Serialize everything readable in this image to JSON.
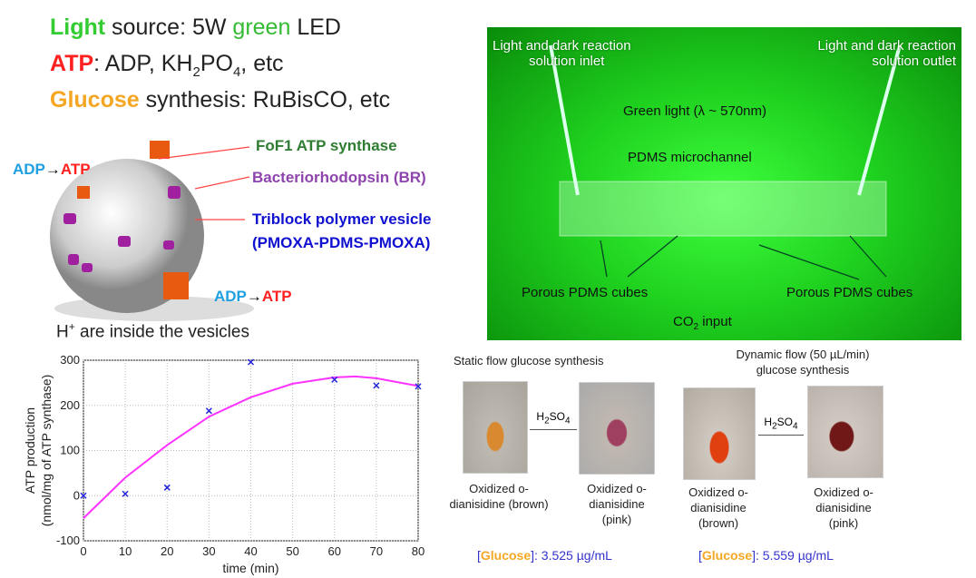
{
  "header": {
    "line1": {
      "key": "Light",
      "rest1": " source: 5W ",
      "green": "green",
      "rest2": " LED"
    },
    "line2": {
      "key": "ATP",
      "rest": ": ADP, KH",
      "sub1": "2",
      "mid": "PO",
      "sub2": "4",
      "end": ", etc"
    },
    "line3": {
      "key": "Glucose",
      "rest": " synthesis: RuBisCO, etc"
    }
  },
  "vesicle": {
    "fof1": "FoF1 ATP synthase",
    "br": "Bacteriorhodopsin (BR)",
    "polymer1": "Triblock polymer vesicle",
    "polymer2": "(PMOXA-PDMS-PMOXA)",
    "adp": "ADP",
    "arrow": "→",
    "atp": "ATP",
    "h_note": "H",
    "h_sup": "+",
    "h_rest": " are inside the vesicles"
  },
  "photo": {
    "inlet1": "Light and dark reaction",
    "inlet2": "solution inlet",
    "outlet1": "Light and dark reaction",
    "outlet2": "solution outlet",
    "green_light": "Green light (λ ~ 570nm)",
    "channel": "PDMS microchannel",
    "cubes_left": "Porous PDMS cubes",
    "cubes_right": "Porous PDMS cubes",
    "co2": "CO",
    "co2_sub": "2",
    "co2_rest": " input"
  },
  "colors": {
    "light": "#33cc33",
    "atp": "#ff2020",
    "glucose": "#f5a623",
    "adp": "#1fa0e0",
    "fof1": "#2e7d32",
    "br": "#8e44ad",
    "polymer": "#1010d0",
    "fit": "#ff33ff",
    "points": "#2222dd",
    "conc": "#3333cc"
  },
  "chart_data": {
    "type": "scatter",
    "xlabel": "time (min)",
    "ylabel1": "ATP production",
    "ylabel2": "(nmol/mg of ATP synthase)",
    "xlim": [
      0,
      80
    ],
    "ylim": [
      -100,
      300
    ],
    "xticks": [
      "0",
      "10",
      "20",
      "30",
      "40",
      "50",
      "60",
      "70",
      "80"
    ],
    "yticks": [
      "-100",
      "0",
      "100",
      "200",
      "300"
    ],
    "grid": true,
    "series": [
      {
        "marker": "x",
        "x": [
          0,
          10,
          20,
          30,
          40,
          60,
          70,
          80
        ],
        "y": [
          0,
          4,
          18,
          188,
          296,
          257,
          244,
          242
        ]
      },
      {
        "marker": "line",
        "x": [
          0,
          10,
          20,
          30,
          40,
          50,
          60,
          65,
          70,
          80
        ],
        "y": [
          -50,
          40,
          112,
          175,
          218,
          248,
          262,
          264,
          260,
          243
        ]
      }
    ]
  },
  "results": {
    "static_title": "Static flow glucose synthesis",
    "dynamic_title1": "Dynamic flow (50 µL/min)",
    "dynamic_title2": "glucose synthesis",
    "reagent": "H",
    "reagent_sub1": "2",
    "reagent_mid": "SO",
    "reagent_sub2": "4",
    "cap_brown_a": "Oxidized o-",
    "cap_brown_b": "dianisidine (brown)",
    "cap_pink_a": "Oxidized o-",
    "cap_pink_b": "dianisidine",
    "cap_pink_c": "(pink)",
    "cap_brown2_a": "Oxidized o-",
    "cap_brown2_b": "dianisidine",
    "cap_brown2_c": "(brown)",
    "cap_pink2_a": "Oxidized o-",
    "cap_pink2_b": "dianisidine",
    "cap_pink2_c": "(pink)",
    "bracket_l": "[",
    "glucose": "Glucose",
    "bracket_r": "]",
    "static_value": ": 3.525 µg/mL",
    "dynamic_value": ": 5.559 µg/mL"
  }
}
